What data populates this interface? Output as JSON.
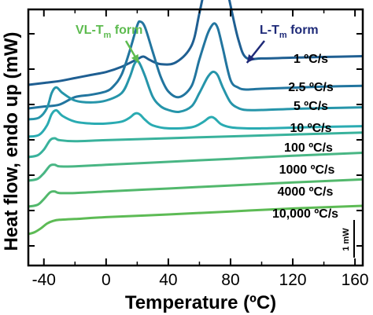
{
  "chart_data": {
    "type": "line",
    "xlabel": "Temperature (ºC)",
    "ylabel": "Heat flow, endo up (mW)",
    "xlim": [
      -50,
      165
    ],
    "xticks": [
      -40,
      0,
      40,
      80,
      120,
      160
    ],
    "tick_labels": [
      "-40",
      "0",
      "40",
      "80",
      "120",
      "160"
    ],
    "grid": false,
    "scale_bar": {
      "label": "1 mW",
      "value_mW": 1
    },
    "annotations": [
      {
        "main": "VL-T",
        "sub": "m",
        "tail": " form",
        "color": "#5dbb4f",
        "x": 22,
        "series": "1 ºC/s"
      },
      {
        "main": "L-T",
        "sub": "m",
        "tail": " form",
        "color": "#1e2a78",
        "x": 88,
        "series": "1 ºC/s"
      }
    ],
    "series": [
      {
        "name": "1 ºC/s",
        "color": "#1f5f92",
        "x": [
          -50,
          -40,
          -30,
          -20,
          -10,
          0,
          10,
          20,
          24,
          28,
          35,
          45,
          55,
          60,
          65,
          68,
          70,
          72,
          75,
          80,
          85,
          90,
          100,
          120,
          140,
          165
        ],
        "y": [
          0,
          0.05,
          0.1,
          0.18,
          0.26,
          0.34,
          0.48,
          0.68,
          0.75,
          0.66,
          0.55,
          0.6,
          1.05,
          1.9,
          2.9,
          3.45,
          3.6,
          3.5,
          3.1,
          2.1,
          1.2,
          0.72,
          0.7,
          0.72,
          0.74,
          0.76
        ]
      },
      {
        "name": "2.5 ºC/s",
        "color": "#22759f",
        "x": [
          -50,
          -40,
          -30,
          -20,
          -10,
          0,
          5,
          10,
          15,
          20,
          22,
          25,
          30,
          35,
          40,
          47,
          55,
          60,
          65,
          68,
          70,
          72,
          75,
          80,
          85,
          90,
          100,
          120,
          140,
          165
        ],
        "y": [
          0,
          0.05,
          0.1,
          0.3,
          0.36,
          0.45,
          0.6,
          0.9,
          1.5,
          2.2,
          2.3,
          2.15,
          1.5,
          0.85,
          0.45,
          0.3,
          0.6,
          1.3,
          1.95,
          2.2,
          2.25,
          2.1,
          1.6,
          0.75,
          0.55,
          0.5,
          0.52,
          0.55,
          0.58,
          0.6
        ]
      },
      {
        "name": "5 ºC/s",
        "color": "#2695aa",
        "x": [
          -50,
          -43,
          -38,
          -35,
          -32,
          -28,
          -20,
          -10,
          0,
          10,
          15,
          18,
          20,
          22,
          25,
          30,
          35,
          40,
          47,
          55,
          60,
          65,
          68,
          70,
          72,
          75,
          80,
          85,
          90,
          100,
          120,
          140,
          165
        ],
        "y": [
          0,
          0.05,
          0.3,
          0.7,
          0.85,
          0.7,
          0.5,
          0.45,
          0.5,
          0.7,
          1.1,
          1.45,
          1.55,
          1.45,
          1.15,
          0.6,
          0.35,
          0.25,
          0.2,
          0.35,
          0.7,
          1.1,
          1.25,
          1.25,
          1.15,
          0.85,
          0.45,
          0.3,
          0.25,
          0.25,
          0.28,
          0.3,
          0.32
        ]
      },
      {
        "name": "10 ºC/s",
        "color": "#2aabb2",
        "x": [
          -50,
          -43,
          -38,
          -35,
          -32,
          -28,
          -20,
          -10,
          0,
          10,
          15,
          18,
          20,
          22,
          25,
          30,
          40,
          55,
          62,
          66,
          68,
          70,
          74,
          80,
          90,
          100,
          120,
          140,
          165
        ],
        "y": [
          0,
          0.05,
          0.3,
          0.6,
          0.7,
          0.55,
          0.4,
          0.35,
          0.35,
          0.4,
          0.5,
          0.6,
          0.62,
          0.58,
          0.45,
          0.3,
          0.22,
          0.25,
          0.38,
          0.5,
          0.52,
          0.48,
          0.33,
          0.25,
          0.22,
          0.22,
          0.24,
          0.26,
          0.28
        ]
      },
      {
        "name": "100 ºC/s",
        "color": "#39b29c",
        "x": [
          -50,
          -44,
          -40,
          -36,
          -33,
          -30,
          -20,
          0,
          40,
          80,
          120,
          165
        ],
        "y": [
          0,
          0.05,
          0.2,
          0.45,
          0.5,
          0.45,
          0.42,
          0.45,
          0.5,
          0.55,
          0.6,
          0.65
        ]
      },
      {
        "name": "1000 ºC/s",
        "color": "#49b684",
        "x": [
          -50,
          -44,
          -40,
          -36,
          -33,
          -30,
          -20,
          0,
          40,
          80,
          120,
          165
        ],
        "y": [
          0,
          0.05,
          0.2,
          0.4,
          0.42,
          0.38,
          0.38,
          0.42,
          0.5,
          0.58,
          0.66,
          0.74
        ]
      },
      {
        "name": "4000 ºC/s",
        "color": "#52b86c",
        "x": [
          -50,
          -44,
          -40,
          -36,
          -33,
          -30,
          -20,
          0,
          40,
          80,
          120,
          165
        ],
        "y": [
          0,
          0.05,
          0.2,
          0.38,
          0.4,
          0.36,
          0.36,
          0.4,
          0.48,
          0.56,
          0.64,
          0.72
        ]
      },
      {
        "name": "10,000 ºC/s",
        "color": "#5dbb55",
        "x": [
          -50,
          -46,
          -42,
          -38,
          -34,
          -30,
          -20,
          0,
          40,
          80,
          120,
          165
        ],
        "y": [
          0,
          0.05,
          0.15,
          0.28,
          0.35,
          0.38,
          0.4,
          0.45,
          0.52,
          0.6,
          0.68,
          0.75
        ]
      }
    ]
  }
}
